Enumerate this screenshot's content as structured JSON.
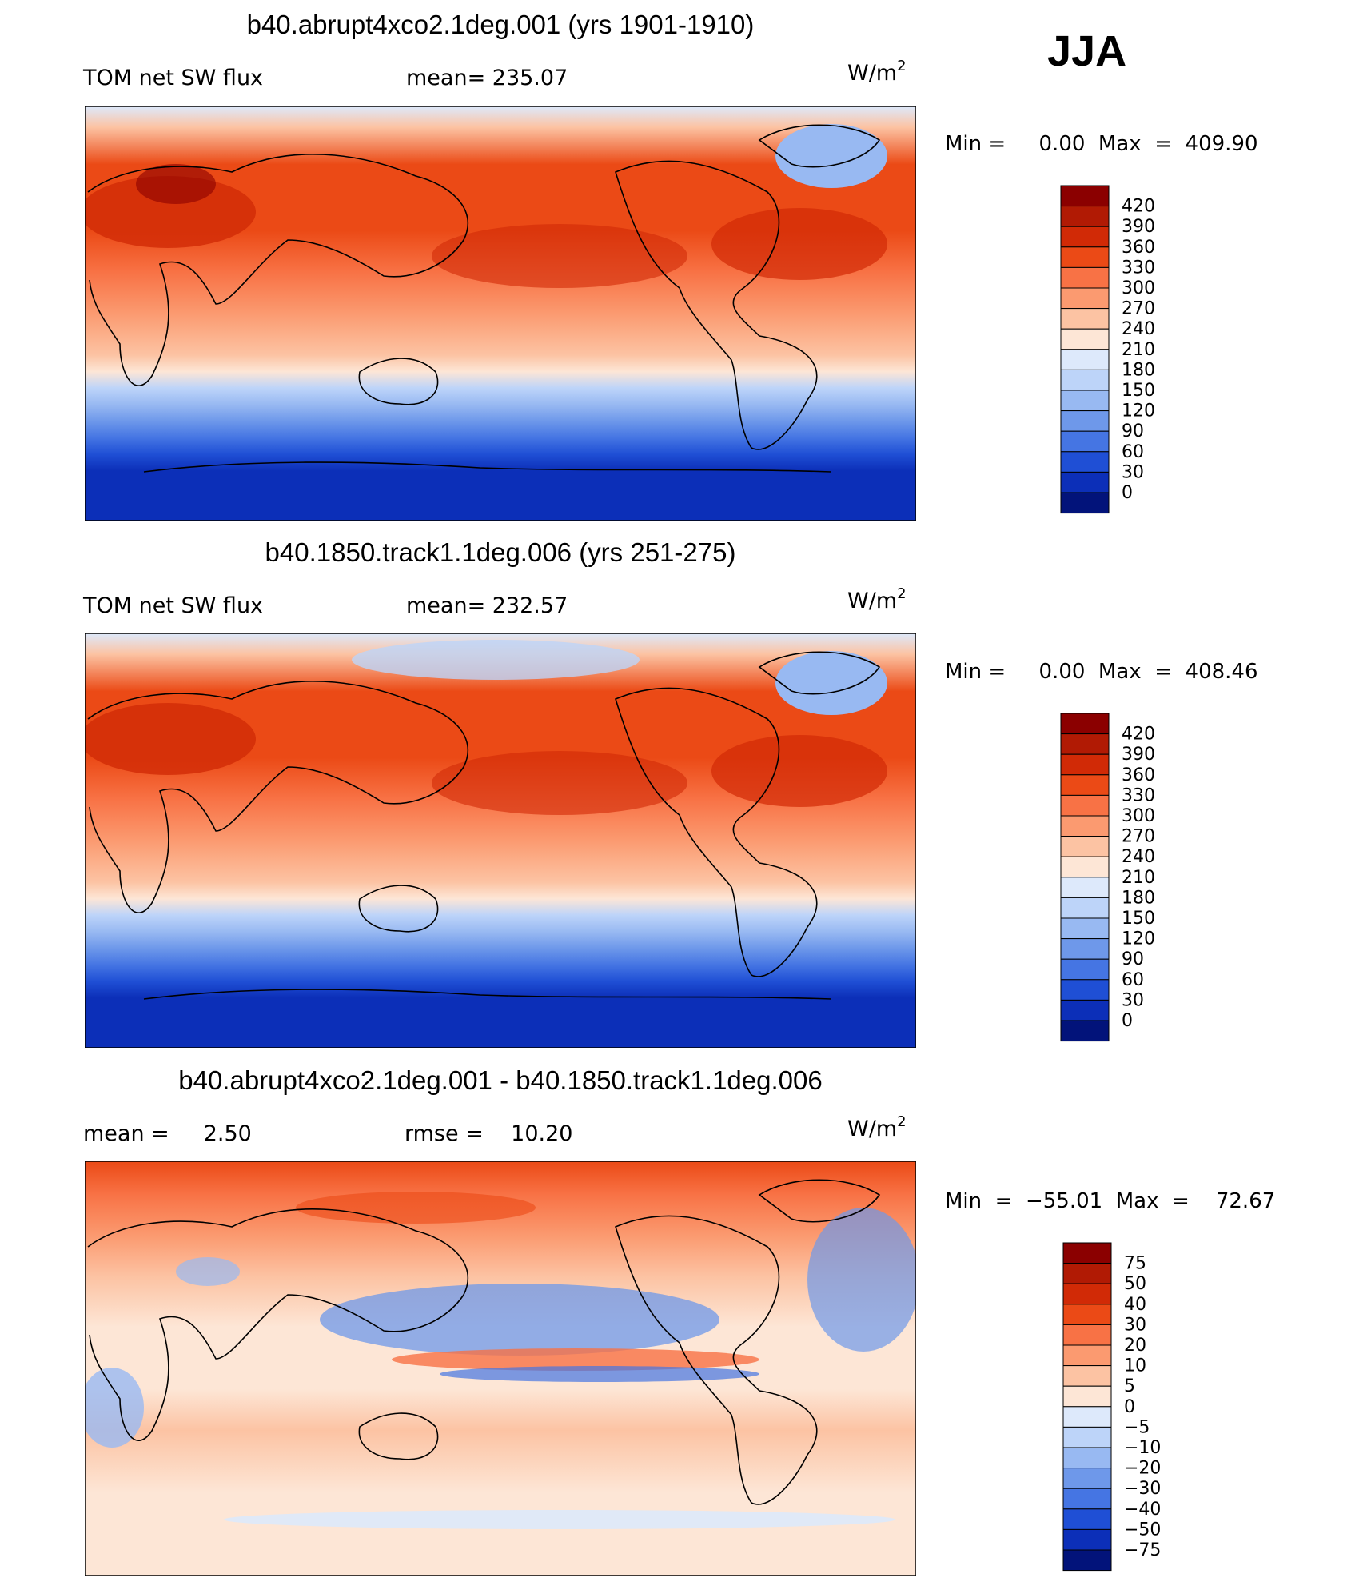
{
  "season": "JJA",
  "chart_data": [
    {
      "type": "heatmap",
      "title": "b40.abrupt4xco2.1deg.001 (yrs 1901-1910)",
      "left_label": "TOM net SW flux",
      "center_label": "mean= 235.07",
      "units_base": "W/m",
      "units_exp": "2",
      "min_max": "Min =     0.00  Max  =  409.90",
      "stats": {
        "mean": 235.07,
        "min": 0.0,
        "max": 409.9
      },
      "legend_levels": [
        "420",
        "390",
        "360",
        "330",
        "300",
        "270",
        "240",
        "210",
        "180",
        "150",
        "120",
        "90",
        "60",
        "30",
        "0"
      ],
      "legend_colors": [
        "#8b0000",
        "#b11a04",
        "#d12a06",
        "#eb4a16",
        "#f87245",
        "#fb9a70",
        "#fcc3a3",
        "#fde6d6",
        "#dde9fb",
        "#bdd4f9",
        "#98b9f2",
        "#6e98ea",
        "#4575e3",
        "#1f4fd5",
        "#0c2fb8",
        "#02137a"
      ],
      "projection": "cylindrical-equidistant",
      "lon_range": [
        30,
        390
      ],
      "lat_range": [
        -90,
        90
      ]
    },
    {
      "type": "heatmap",
      "title": "b40.1850.track1.1deg.006 (yrs 251-275)",
      "left_label": "TOM net SW flux",
      "center_label": "mean= 232.57",
      "units_base": "W/m",
      "units_exp": "2",
      "min_max": "Min =     0.00  Max  =  408.46",
      "stats": {
        "mean": 232.57,
        "min": 0.0,
        "max": 408.46
      },
      "legend_levels": [
        "420",
        "390",
        "360",
        "330",
        "300",
        "270",
        "240",
        "210",
        "180",
        "150",
        "120",
        "90",
        "60",
        "30",
        "0"
      ],
      "legend_colors": [
        "#8b0000",
        "#b11a04",
        "#d12a06",
        "#eb4a16",
        "#f87245",
        "#fb9a70",
        "#fcc3a3",
        "#fde6d6",
        "#dde9fb",
        "#bdd4f9",
        "#98b9f2",
        "#6e98ea",
        "#4575e3",
        "#1f4fd5",
        "#0c2fb8",
        "#02137a"
      ],
      "projection": "cylindrical-equidistant",
      "lon_range": [
        30,
        390
      ],
      "lat_range": [
        -90,
        90
      ]
    },
    {
      "type": "heatmap",
      "title": "b40.abrupt4xco2.1deg.001 - b40.1850.track1.1deg.006",
      "left_label": "mean =     2.50",
      "center_label": "rmse =    10.20",
      "units_base": "W/m",
      "units_exp": "2",
      "min_max": "Min  =  −55.01  Max  =    72.67",
      "stats": {
        "mean": 2.5,
        "rmse": 10.2,
        "min": -55.01,
        "max": 72.67
      },
      "legend_levels": [
        "75",
        "50",
        "40",
        "30",
        "20",
        "10",
        "5",
        "0",
        "−5",
        "−10",
        "−20",
        "−30",
        "−40",
        "−50",
        "−75"
      ],
      "legend_colors": [
        "#8b0000",
        "#b11a04",
        "#d12a06",
        "#eb4a16",
        "#f87245",
        "#fb9a70",
        "#fcc3a3",
        "#fde6d6",
        "#dde9fb",
        "#bdd4f9",
        "#98b9f2",
        "#6e98ea",
        "#4575e3",
        "#1f4fd5",
        "#0c2fb8",
        "#02137a"
      ],
      "projection": "cylindrical-equidistant",
      "lon_range": [
        30,
        390
      ],
      "lat_range": [
        -90,
        90
      ]
    }
  ]
}
